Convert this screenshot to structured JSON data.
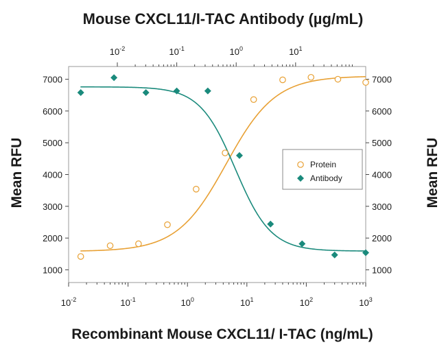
{
  "chart_data": {
    "type": "scatter",
    "title": "Mouse CXCL11/I-TAC Antibody (µg/mL)",
    "xlabel": "Recombinant Mouse CXCL11/ I-TAC (ng/mL)",
    "ylabel": "Mean RFU",
    "y2label": "Mean RFU",
    "x_scale": "log",
    "xlim": [
      0.01,
      1000
    ],
    "ylim": [
      600,
      7400
    ],
    "x_ticks": [
      0.01,
      0.1,
      1,
      10,
      100,
      1000
    ],
    "x_tick_labels": [
      {
        "base": "10",
        "exp": "-2"
      },
      {
        "base": "10",
        "exp": "-1"
      },
      {
        "base": "10",
        "exp": "0"
      },
      {
        "base": "10",
        "exp": "1"
      },
      {
        "base": "10",
        "exp": "2"
      },
      {
        "base": "10",
        "exp": "3"
      }
    ],
    "y_ticks": [
      1000,
      2000,
      3000,
      4000,
      5000,
      6000,
      7000
    ],
    "top_axis": {
      "scale": "log",
      "ticks": [
        0.01,
        0.1,
        1,
        10
      ],
      "tick_labels": [
        {
          "base": "10",
          "exp": "-2"
        },
        {
          "base": "10",
          "exp": "-1"
        },
        {
          "base": "10",
          "exp": "0"
        },
        {
          "base": "10",
          "exp": "1"
        }
      ]
    },
    "legend_position": "right",
    "grid": false,
    "series": [
      {
        "name": "Protein",
        "marker": "open-circle",
        "color": "#e8a033",
        "x": [
          0.016,
          0.05,
          0.15,
          0.46,
          1.4,
          4.3,
          13,
          40,
          120,
          340,
          1000
        ],
        "y": [
          1420,
          1760,
          1820,
          2420,
          3540,
          4680,
          6360,
          6980,
          7060,
          7000,
          6900
        ],
        "fit": {
          "bottom": 1580,
          "top": 7100,
          "ec50": 4.5,
          "hill": 1.05
        }
      },
      {
        "name": "Antibody",
        "marker": "filled-diamond",
        "color": "#1a8a7c",
        "x": [
          0.016,
          0.058,
          0.2,
          0.66,
          2.2,
          7.5,
          25,
          85,
          300,
          1000
        ],
        "y": [
          6580,
          7050,
          6580,
          6630,
          6630,
          4600,
          2440,
          1820,
          1470,
          1540
        ],
        "fit": {
          "bottom": 1590,
          "top": 6760,
          "ec50": 6.4,
          "hill": -1.45
        }
      }
    ]
  }
}
